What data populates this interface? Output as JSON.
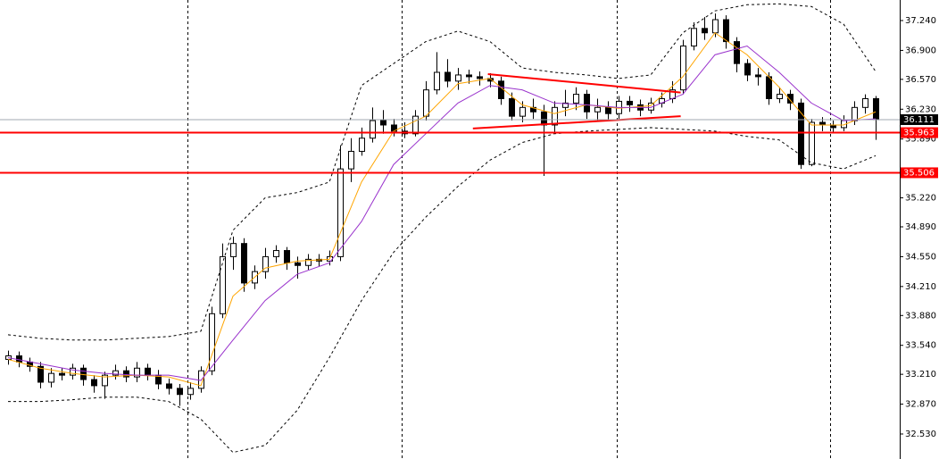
{
  "chart_data": {
    "type": "candlestick",
    "open": [
      33.38,
      33.42,
      33.35,
      33.3,
      33.12,
      33.22,
      33.2,
      33.28,
      33.15,
      33.08,
      33.2,
      33.25,
      33.18,
      33.28,
      33.2,
      33.1,
      33.05,
      32.98,
      33.05,
      33.25,
      33.9,
      34.55,
      34.7,
      34.25,
      34.38,
      34.55,
      34.62,
      34.48,
      34.45,
      34.52,
      34.5,
      34.55,
      35.55,
      35.75,
      35.9,
      36.1,
      36.05,
      35.98,
      35.95,
      36.15,
      36.45,
      36.65,
      36.55,
      36.62,
      36.6,
      36.58,
      36.55,
      36.35,
      36.15,
      36.25,
      36.2,
      36.05,
      36.25,
      36.3,
      36.4,
      36.2,
      36.25,
      36.18,
      36.32,
      36.28,
      36.22,
      36.3,
      36.35,
      36.45,
      36.95,
      37.15,
      37.1,
      37.25,
      37.0,
      36.75,
      36.62,
      36.6,
      36.35,
      36.4,
      36.3,
      35.6,
      36.08,
      36.05,
      36.02,
      36.1,
      36.25,
      36.35
    ],
    "high": [
      33.48,
      33.47,
      33.4,
      33.35,
      33.28,
      33.28,
      33.33,
      33.32,
      33.2,
      33.24,
      33.32,
      33.3,
      33.35,
      33.33,
      33.26,
      33.16,
      33.1,
      33.12,
      33.3,
      33.98,
      34.7,
      34.78,
      34.76,
      34.45,
      34.65,
      34.68,
      34.66,
      34.55,
      34.58,
      34.58,
      34.62,
      35.82,
      35.9,
      36.02,
      36.25,
      36.22,
      36.12,
      36.08,
      36.22,
      36.55,
      36.88,
      36.8,
      36.7,
      36.68,
      36.66,
      36.64,
      36.6,
      36.42,
      36.32,
      36.35,
      36.28,
      36.32,
      36.45,
      36.48,
      36.45,
      36.35,
      36.32,
      36.38,
      36.38,
      36.34,
      36.36,
      36.42,
      36.55,
      37.02,
      37.22,
      37.28,
      37.32,
      37.3,
      37.05,
      36.8,
      36.7,
      36.65,
      36.48,
      36.45,
      36.35,
      36.12,
      36.14,
      36.1,
      36.16,
      36.32,
      36.4,
      36.38
    ],
    "low": [
      33.32,
      33.29,
      33.24,
      33.05,
      33.06,
      33.14,
      33.15,
      33.08,
      33.0,
      32.93,
      33.15,
      33.12,
      33.12,
      33.14,
      33.04,
      32.98,
      32.85,
      32.92,
      33.0,
      33.2,
      33.85,
      34.4,
      34.15,
      34.18,
      34.3,
      34.48,
      34.4,
      34.3,
      34.4,
      34.44,
      34.45,
      34.5,
      35.4,
      35.7,
      35.85,
      35.95,
      35.92,
      35.9,
      35.92,
      36.1,
      36.4,
      36.48,
      36.45,
      36.52,
      36.5,
      36.48,
      36.28,
      36.1,
      36.08,
      36.12,
      35.47,
      35.95,
      36.15,
      36.22,
      36.12,
      36.1,
      36.1,
      36.12,
      36.2,
      36.15,
      36.18,
      36.25,
      36.3,
      36.4,
      36.9,
      37.02,
      37.05,
      36.92,
      36.65,
      36.55,
      36.5,
      36.28,
      36.3,
      36.22,
      35.55,
      35.58,
      35.98,
      35.96,
      35.98,
      36.05,
      36.18,
      35.88
    ],
    "close": [
      33.42,
      33.35,
      33.3,
      33.12,
      33.22,
      33.2,
      33.28,
      33.15,
      33.08,
      33.2,
      33.25,
      33.18,
      33.28,
      33.2,
      33.1,
      33.05,
      32.98,
      33.05,
      33.25,
      33.9,
      34.55,
      34.7,
      34.25,
      34.38,
      34.55,
      34.62,
      34.48,
      34.45,
      34.52,
      34.5,
      34.55,
      35.55,
      35.75,
      35.9,
      36.1,
      36.05,
      35.98,
      35.95,
      36.15,
      36.45,
      36.65,
      36.55,
      36.62,
      36.6,
      36.58,
      36.55,
      36.35,
      36.15,
      36.25,
      36.2,
      36.05,
      36.25,
      36.3,
      36.4,
      36.2,
      36.25,
      36.18,
      36.32,
      36.28,
      36.22,
      36.3,
      36.35,
      36.45,
      36.95,
      37.15,
      37.1,
      37.25,
      37.0,
      36.75,
      36.62,
      36.6,
      36.35,
      36.4,
      36.3,
      35.6,
      36.08,
      36.05,
      36.02,
      36.1,
      36.25,
      36.35,
      36.11
    ],
    "overlays": [
      {
        "color": "#ffa500",
        "style": "solid",
        "x": [
          0,
          3,
          6,
          9,
          12,
          15,
          18,
          21,
          24,
          27,
          30,
          33,
          36,
          39,
          42,
          45,
          48,
          51,
          54,
          57,
          60,
          63,
          66,
          69,
          72,
          75,
          78,
          81
        ],
        "values": [
          33.38,
          33.28,
          33.22,
          33.18,
          33.2,
          33.18,
          33.08,
          34.1,
          34.42,
          34.5,
          34.52,
          35.4,
          35.98,
          36.15,
          36.52,
          36.58,
          36.28,
          36.18,
          36.28,
          36.24,
          36.27,
          36.6,
          37.1,
          36.85,
          36.48,
          36.05,
          36.05,
          36.2
        ]
      },
      {
        "color": "#9932cc",
        "style": "solid",
        "x": [
          0,
          3,
          6,
          9,
          12,
          15,
          18,
          21,
          24,
          27,
          30,
          33,
          36,
          39,
          42,
          45,
          48,
          51,
          54,
          57,
          60,
          63,
          66,
          69,
          72,
          75,
          78,
          81
        ],
        "values": [
          33.4,
          33.33,
          33.26,
          33.22,
          33.2,
          33.2,
          33.14,
          33.6,
          34.05,
          34.35,
          34.48,
          34.95,
          35.6,
          35.95,
          36.3,
          36.5,
          36.45,
          36.3,
          36.28,
          36.25,
          36.25,
          36.4,
          36.85,
          36.95,
          36.65,
          36.3,
          36.1,
          36.12
        ]
      },
      {
        "color": "#000000",
        "style": "dashed",
        "x": [
          0,
          3,
          6,
          9,
          12,
          15,
          18,
          21,
          24,
          27,
          30,
          33,
          36,
          39,
          42,
          45,
          48,
          51,
          54,
          57,
          60,
          63,
          66,
          69,
          72,
          75,
          78,
          81
        ],
        "values": [
          33.66,
          33.62,
          33.6,
          33.6,
          33.62,
          33.64,
          33.7,
          34.85,
          35.22,
          35.28,
          35.4,
          36.5,
          36.75,
          37.0,
          37.12,
          37.0,
          36.7,
          36.65,
          36.62,
          36.58,
          36.62,
          37.1,
          37.35,
          37.42,
          37.43,
          37.4,
          37.2,
          36.66
        ]
      },
      {
        "color": "#000000",
        "style": "dashed",
        "x": [
          0,
          3,
          6,
          9,
          12,
          15,
          18,
          21,
          24,
          27,
          30,
          33,
          36,
          39,
          42,
          45,
          48,
          51,
          54,
          57,
          60,
          63,
          66,
          69,
          72,
          75,
          78,
          81
        ],
        "values": [
          32.9,
          32.9,
          32.92,
          32.95,
          32.95,
          32.9,
          32.7,
          32.32,
          32.4,
          32.8,
          33.4,
          34.05,
          34.6,
          35.0,
          35.35,
          35.65,
          35.85,
          35.95,
          35.98,
          36.0,
          36.02,
          36.0,
          35.98,
          35.92,
          35.88,
          35.62,
          35.55,
          35.7
        ]
      },
      {
        "color": "#ff0000",
        "style": "solid",
        "x": [
          44.8,
          62.8
        ],
        "values": [
          36.63,
          36.42
        ]
      },
      {
        "color": "#ff0000",
        "style": "solid",
        "x": [
          43.4,
          62.8
        ],
        "values": [
          36.01,
          36.15
        ]
      }
    ],
    "hlines": [
      {
        "value": 35.963,
        "color": "#ff0000"
      },
      {
        "value": 35.506,
        "color": "#ff0000"
      },
      {
        "value": 36.111,
        "color": "#a0a8b0"
      }
    ],
    "ylim": [
      32.245,
      37.474
    ],
    "yticks": [
      {
        "value": 37.24,
        "label": "37.240"
      },
      {
        "value": 36.9,
        "label": "36.900"
      },
      {
        "value": 36.57,
        "label": "36.570"
      },
      {
        "value": 36.23,
        "label": "36.230"
      },
      {
        "value": 35.89,
        "label": "35.890"
      },
      {
        "value": 35.22,
        "label": "35.220"
      },
      {
        "value": 34.89,
        "label": "34.890"
      },
      {
        "value": 34.55,
        "label": "34.550"
      },
      {
        "value": 34.21,
        "label": "34.210"
      },
      {
        "value": 33.88,
        "label": "33.880"
      },
      {
        "value": 33.54,
        "label": "33.540"
      },
      {
        "value": 33.21,
        "label": "33.210"
      },
      {
        "value": 32.87,
        "label": "32.870"
      },
      {
        "value": 32.53,
        "label": "32.530"
      }
    ]
  }
}
